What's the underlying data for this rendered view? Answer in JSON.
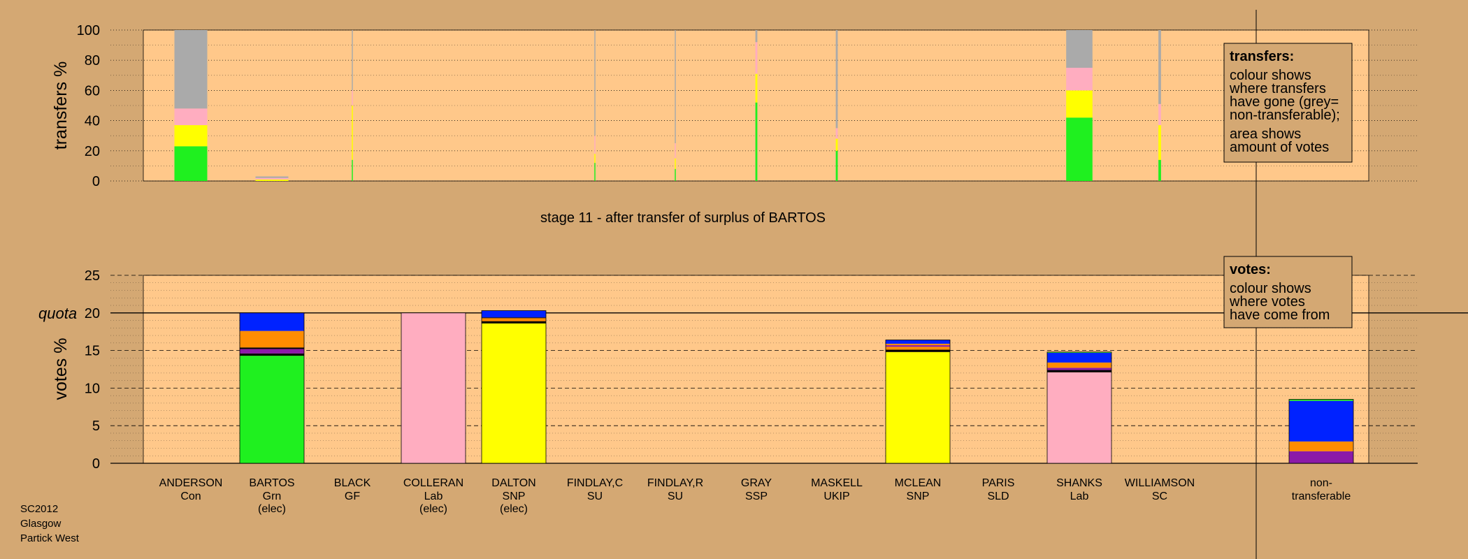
{
  "footer": [
    "SC2012",
    "Glasgow",
    "Partick West"
  ],
  "caption": "stage 11 - after transfer of surplus of BARTOS",
  "colors": {
    "page_bg": "#d4a873",
    "plot_bg": "#ffc88a",
    "Con": "#1ff01f",
    "Grn": "#1ff01f",
    "GF": "#ffff00",
    "Lab": "#ffadc0",
    "SNP": "#ffff00",
    "SSP": "#ff8c00",
    "UKIP": "#8b1aa8",
    "SLD": "#ff8c00",
    "SC": "#8b1aa8",
    "nontransferable": "#aaaaaa",
    "blue": "#0022ff",
    "orange": "#ff8c00",
    "purple": "#8b1aa8",
    "black": "#000000"
  },
  "legend_transfers": {
    "title": "transfers:",
    "lines1": [
      "colour shows",
      "where transfers",
      "have gone (grey=",
      "non-transferable);"
    ],
    "lines2": [
      "area shows",
      "amount of votes"
    ]
  },
  "legend_votes": {
    "title": "votes:",
    "lines1": [
      "colour shows",
      "where votes",
      "have come from"
    ]
  },
  "chart_data": [
    {
      "type": "bar",
      "name": "transfers",
      "ylabel": "transfers %",
      "ylim": [
        0,
        100
      ],
      "yticks": [
        0,
        20,
        40,
        60,
        80,
        100
      ],
      "grid": "dotted horizontal",
      "legend": "top-right",
      "categories": [
        "ANDERSON",
        "BARTOS",
        "BLACK",
        "COLLERAN",
        "DALTON",
        "FINDLAY,C",
        "FINDLAY,R",
        "GRAY",
        "MASKELL",
        "MCLEAN",
        "PARIS",
        "SHANKS",
        "WILLIAMSON"
      ],
      "bars": [
        {
          "candidate": "ANDERSON",
          "width_weight": 1.0,
          "segments": [
            {
              "color": "Con",
              "value": 23
            },
            {
              "color": "SNP",
              "value": 14
            },
            {
              "color": "Lab",
              "value": 11
            },
            {
              "color": "nontransferable",
              "value": 52
            }
          ]
        },
        {
          "candidate": "BARTOS",
          "width_weight": 1.0,
          "segments": [
            {
              "color": "SNP",
              "value": 1
            },
            {
              "color": "Lab",
              "value": 1
            },
            {
              "color": "nontransferable",
              "value": 1
            }
          ]
        },
        {
          "candidate": "BLACK",
          "width_weight": 0.03,
          "segments": [
            {
              "color": "Con",
              "value": 14
            },
            {
              "color": "SNP",
              "value": 36
            },
            {
              "color": "Lab",
              "value": 10
            },
            {
              "color": "nontransferable",
              "value": 40
            }
          ]
        },
        {
          "candidate": "FINDLAY,C",
          "width_weight": 0.03,
          "segments": [
            {
              "color": "Con",
              "value": 12
            },
            {
              "color": "SNP",
              "value": 6
            },
            {
              "color": "Lab",
              "value": 12
            },
            {
              "color": "nontransferable",
              "value": 70
            }
          ]
        },
        {
          "candidate": "FINDLAY,R",
          "width_weight": 0.03,
          "segments": [
            {
              "color": "Con",
              "value": 8
            },
            {
              "color": "SNP",
              "value": 7
            },
            {
              "color": "Lab",
              "value": 10
            },
            {
              "color": "nontransferable",
              "value": 75
            }
          ]
        },
        {
          "candidate": "GRAY",
          "width_weight": 0.06,
          "segments": [
            {
              "color": "Con",
              "value": 52
            },
            {
              "color": "SNP",
              "value": 19
            },
            {
              "color": "Lab",
              "value": 21
            },
            {
              "color": "nontransferable",
              "value": 8
            }
          ]
        },
        {
          "candidate": "MASKELL",
          "width_weight": 0.06,
          "segments": [
            {
              "color": "Con",
              "value": 20
            },
            {
              "color": "SNP",
              "value": 8
            },
            {
              "color": "Lab",
              "value": 7
            },
            {
              "color": "nontransferable",
              "value": 65
            }
          ]
        },
        {
          "candidate": "SHANKS",
          "width_weight": 0.8,
          "segments": [
            {
              "color": "Con",
              "value": 42
            },
            {
              "color": "SNP",
              "value": 18
            },
            {
              "color": "Lab",
              "value": 15
            },
            {
              "color": "nontransferable",
              "value": 25
            }
          ]
        },
        {
          "candidate": "WILLIAMSON",
          "width_weight": 0.08,
          "segments": [
            {
              "color": "Con",
              "value": 14
            },
            {
              "color": "SNP",
              "value": 23
            },
            {
              "color": "Lab",
              "value": 14
            },
            {
              "color": "nontransferable",
              "value": 49
            }
          ]
        }
      ]
    },
    {
      "type": "bar",
      "name": "votes",
      "ylabel": "votes %",
      "ylim": [
        0,
        25
      ],
      "yticks": [
        0,
        5,
        10,
        15,
        20,
        25
      ],
      "quota": {
        "label": "quota",
        "value": 20
      },
      "grid": "dashed horizontal",
      "legend": "top-right",
      "categories": [
        {
          "name": "ANDERSON",
          "party": "Con",
          "status": ""
        },
        {
          "name": "BARTOS",
          "party": "Grn",
          "status": "(elec)"
        },
        {
          "name": "BLACK",
          "party": "GF",
          "status": ""
        },
        {
          "name": "COLLERAN",
          "party": "Lab",
          "status": "(elec)"
        },
        {
          "name": "DALTON",
          "party": "SNP",
          "status": "(elec)"
        },
        {
          "name": "FINDLAY,C",
          "party": "SU",
          "status": ""
        },
        {
          "name": "FINDLAY,R",
          "party": "SU",
          "status": ""
        },
        {
          "name": "GRAY",
          "party": "SSP",
          "status": ""
        },
        {
          "name": "MASKELL",
          "party": "UKIP",
          "status": ""
        },
        {
          "name": "MCLEAN",
          "party": "SNP",
          "status": ""
        },
        {
          "name": "PARIS",
          "party": "SLD",
          "status": ""
        },
        {
          "name": "SHANKS",
          "party": "Lab",
          "status": ""
        },
        {
          "name": "WILLIAMSON",
          "party": "SC",
          "status": ""
        }
      ],
      "nontransferable_label": [
        "non-",
        "transferable"
      ],
      "bars": [
        {
          "candidate": "BARTOS",
          "segments": [
            {
              "color": "Grn",
              "value": 14.3
            },
            {
              "color": "black",
              "value": 0.3
            },
            {
              "color": "purple",
              "value": 0.6
            },
            {
              "color": "black",
              "value": 0.2
            },
            {
              "color": "orange",
              "value": 2.2
            },
            {
              "color": "blue",
              "value": 2.4
            }
          ]
        },
        {
          "candidate": "COLLERAN",
          "segments": [
            {
              "color": "Lab",
              "value": 20.0
            }
          ]
        },
        {
          "candidate": "DALTON",
          "segments": [
            {
              "color": "SNP",
              "value": 18.6
            },
            {
              "color": "black",
              "value": 0.3
            },
            {
              "color": "orange",
              "value": 0.4
            },
            {
              "color": "black",
              "value": 0.1
            },
            {
              "color": "blue",
              "value": 0.9
            }
          ]
        },
        {
          "candidate": "MCLEAN",
          "segments": [
            {
              "color": "SNP",
              "value": 14.8
            },
            {
              "color": "black",
              "value": 0.3
            },
            {
              "color": "orange",
              "value": 0.4
            },
            {
              "color": "purple",
              "value": 0.2
            },
            {
              "color": "orange",
              "value": 0.2
            },
            {
              "color": "blue",
              "value": 0.5
            }
          ]
        },
        {
          "candidate": "SHANKS",
          "segments": [
            {
              "color": "Lab",
              "value": 12.1
            },
            {
              "color": "black",
              "value": 0.3
            },
            {
              "color": "purple",
              "value": 0.3
            },
            {
              "color": "orange",
              "value": 0.7
            },
            {
              "color": "blue",
              "value": 1.3
            },
            {
              "color": "Con",
              "value": 0.1
            }
          ]
        },
        {
          "candidate": "non-transferable",
          "segments": [
            {
              "color": "purple",
              "value": 1.6
            },
            {
              "color": "orange",
              "value": 1.3
            },
            {
              "color": "blue",
              "value": 5.4
            },
            {
              "color": "Con",
              "value": 0.2
            }
          ]
        }
      ]
    }
  ]
}
